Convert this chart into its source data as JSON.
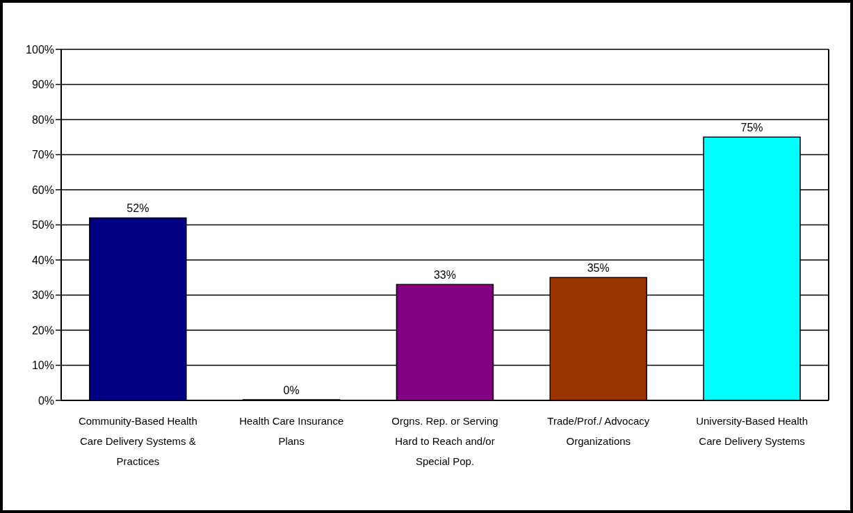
{
  "chart_data": {
    "type": "bar",
    "categories": [
      "Community-Based Health Care Delivery Systems & Practices",
      "Health Care Insurance Plans",
      "Orgns. Rep. or Serving Hard to Reach and/or Special Pop.",
      "Trade/Prof./ Advocacy Organizations",
      "University-Based Health Care Delivery Systems"
    ],
    "values": [
      52,
      0,
      33,
      35,
      75
    ],
    "colors": [
      "#000080",
      null,
      "#800080",
      "#993300",
      "#00ffff"
    ],
    "value_labels": [
      "52%",
      "0%",
      "33%",
      "35%",
      "75%"
    ],
    "ylim": [
      0,
      100
    ],
    "yticks": [
      {
        "value": 0,
        "label": "0%"
      },
      {
        "value": 10,
        "label": "10%"
      },
      {
        "value": 20,
        "label": "20%"
      },
      {
        "value": 30,
        "label": "30%"
      },
      {
        "value": 40,
        "label": "40%"
      },
      {
        "value": 50,
        "label": "50%"
      },
      {
        "value": 60,
        "label": "60%"
      },
      {
        "value": 70,
        "label": "70%"
      },
      {
        "value": 80,
        "label": "80%"
      },
      {
        "value": 90,
        "label": "90%"
      },
      {
        "value": 100,
        "label": "100%"
      }
    ],
    "grid": "y"
  }
}
